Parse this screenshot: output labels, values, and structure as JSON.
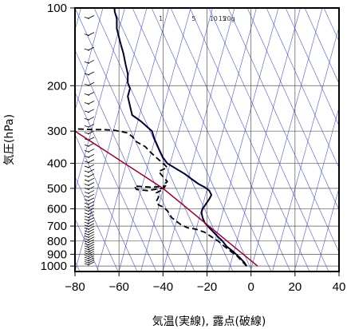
{
  "chart_data": {
    "type": "line",
    "title": "",
    "xlabel": "気温(実線), 露点(破線)",
    "ylabel": "気圧(hPa)",
    "xlim": [
      -80,
      40
    ],
    "ylim": [
      1050,
      100
    ],
    "y_scale": "log",
    "grid": true,
    "x_ticks": [
      "−80",
      "−60",
      "−40",
      "−20",
      "0",
      "20",
      "40"
    ],
    "x_tick_values": [
      -80,
      -60,
      -40,
      -20,
      0,
      20,
      40
    ],
    "y_ticks": [
      "100",
      "200",
      "300",
      "400",
      "500",
      "600",
      "700",
      "800",
      "900",
      "1000"
    ],
    "y_tick_values": [
      100,
      200,
      300,
      400,
      500,
      600,
      700,
      800,
      900,
      1000
    ],
    "mixing_ratio_labels": [
      "1",
      "5",
      "10",
      "15",
      "20g"
    ],
    "mixing_ratio_label_x": [
      -41,
      -26,
      -17,
      -13,
      -10
    ],
    "series": [
      {
        "name": "",
        "style": "solid",
        "color": "#000033",
        "points": [
          [
            -2,
            1000
          ],
          [
            -3,
            970
          ],
          [
            -5,
            930
          ],
          [
            -8,
            880
          ],
          [
            -11,
            840
          ],
          [
            -13,
            800
          ],
          [
            -15,
            770
          ],
          [
            -17,
            740
          ],
          [
            -19,
            710
          ],
          [
            -21,
            680
          ],
          [
            -22,
            650
          ],
          [
            -22.5,
            620
          ],
          [
            -22,
            600
          ],
          [
            -20.5,
            575
          ],
          [
            -19,
            550
          ],
          [
            -18,
            530
          ],
          [
            -19,
            510
          ],
          [
            -21,
            495
          ],
          [
            -24,
            480
          ],
          [
            -27,
            460
          ],
          [
            -30,
            440
          ],
          [
            -34,
            420
          ],
          [
            -38,
            400
          ],
          [
            -40,
            380
          ],
          [
            -42,
            350
          ],
          [
            -44,
            320
          ],
          [
            -45,
            300
          ],
          [
            -47,
            290
          ],
          [
            -50,
            275
          ],
          [
            -54,
            260
          ],
          [
            -55,
            240
          ],
          [
            -56,
            220
          ],
          [
            -55,
            205
          ],
          [
            -56,
            195
          ],
          [
            -56,
            180
          ],
          [
            -57,
            165
          ],
          [
            -58,
            150
          ],
          [
            -59,
            140
          ],
          [
            -60,
            130
          ],
          [
            -61,
            120
          ],
          [
            -61,
            110
          ],
          [
            -62,
            103
          ],
          [
            -62,
            100
          ]
        ]
      },
      {
        "name": "",
        "style": "dashed",
        "color": "#000000",
        "points": [
          [
            -2,
            1000
          ],
          [
            -4,
            960
          ],
          [
            -6,
            920
          ],
          [
            -9,
            880
          ],
          [
            -12,
            840
          ],
          [
            -15,
            800
          ],
          [
            -18,
            770
          ],
          [
            -21,
            740
          ],
          [
            -25,
            720
          ],
          [
            -29,
            710
          ],
          [
            -32,
            690
          ],
          [
            -34,
            670
          ],
          [
            -36,
            650
          ],
          [
            -37,
            630
          ],
          [
            -38,
            610
          ],
          [
            -40,
            590
          ],
          [
            -42,
            580
          ],
          [
            -43,
            560
          ],
          [
            -42,
            540
          ],
          [
            -43,
            520
          ],
          [
            -40,
            505
          ],
          [
            -39,
            490
          ],
          [
            -45,
            495
          ],
          [
            -53,
            490
          ],
          [
            -52,
            505
          ],
          [
            -47,
            510
          ],
          [
            -44,
            505
          ],
          [
            -40,
            500
          ],
          [
            -39,
            480
          ],
          [
            -38,
            470
          ],
          [
            -40,
            450
          ],
          [
            -42,
            430
          ],
          [
            -38,
            415
          ],
          [
            -40,
            400
          ],
          [
            -43,
            380
          ],
          [
            -46,
            360
          ],
          [
            -48,
            345
          ],
          [
            -52,
            330
          ],
          [
            -54,
            315
          ],
          [
            -56,
            305
          ],
          [
            -62,
            298
          ],
          [
            -67,
            296
          ],
          [
            -72,
            296
          ],
          [
            -76,
            295
          ],
          [
            -80,
            294
          ]
        ]
      },
      {
        "name": "",
        "style": "solid",
        "color": "#990033",
        "points": [
          [
            3,
            1000
          ],
          [
            -40,
            500
          ],
          [
            -80,
            300
          ]
        ]
      }
    ]
  }
}
